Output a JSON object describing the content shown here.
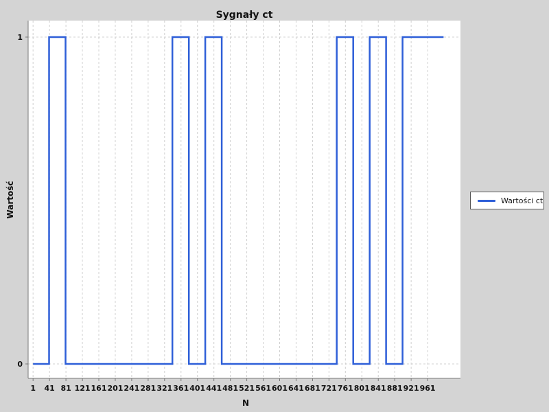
{
  "chart_data": {
    "type": "line",
    "title": "Sygnały ct",
    "xlabel": "N",
    "ylabel": "Wartość",
    "step": true,
    "xlim": [
      -11,
      1041
    ],
    "ylim": [
      0,
      1
    ],
    "x_ticks": [
      1,
      41,
      81,
      121,
      161,
      201,
      241,
      281,
      321,
      361,
      401,
      441,
      481,
      521,
      561,
      601,
      641,
      681,
      721,
      761,
      801,
      841,
      881,
      921,
      961
    ],
    "y_ticks": [
      0,
      1
    ],
    "grid": true,
    "legend_position": "right",
    "series": [
      {
        "name": "Wartości ct",
        "color": "#2e5fd8",
        "points": [
          [
            1,
            0
          ],
          [
            40,
            0
          ],
          [
            40,
            1
          ],
          [
            80,
            1
          ],
          [
            80,
            0
          ],
          [
            340,
            0
          ],
          [
            340,
            1
          ],
          [
            380,
            1
          ],
          [
            380,
            0
          ],
          [
            420,
            0
          ],
          [
            420,
            1
          ],
          [
            460,
            1
          ],
          [
            460,
            0
          ],
          [
            740,
            0
          ],
          [
            740,
            1
          ],
          [
            780,
            1
          ],
          [
            780,
            0
          ],
          [
            820,
            0
          ],
          [
            820,
            1
          ],
          [
            860,
            1
          ],
          [
            860,
            0
          ],
          [
            900,
            0
          ],
          [
            900,
            1
          ],
          [
            1000,
            1
          ]
        ]
      }
    ]
  }
}
